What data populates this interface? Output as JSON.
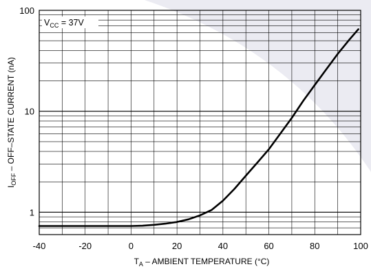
{
  "chart_data": {
    "type": "line",
    "xlabel": {
      "prefix": "T",
      "sub": "A",
      "rest": " – AMBIENT TEMPERATURE (°C)"
    },
    "ylabel": {
      "prefix": "I",
      "sub": "OFF",
      "rest": " – OFF–STATE CURRENT (nA)"
    },
    "annotation": {
      "prefix": "V",
      "sub": "CC",
      "rest": " = 37V"
    },
    "x_scale": "linear",
    "y_scale": "log",
    "xlim": [
      -40,
      100
    ],
    "ylim": [
      0.6,
      100
    ],
    "x_ticks": [
      -40,
      -20,
      0,
      20,
      40,
      60,
      80,
      100
    ],
    "x_tick_labels": [
      "-40",
      "-20",
      "0",
      "20",
      "40",
      "60",
      "80",
      "100"
    ],
    "y_ticks": [
      1,
      10,
      100
    ],
    "y_tick_labels": [
      "1",
      "10",
      "100"
    ],
    "grid": true,
    "line_color": "#000000",
    "background_shape_color": "#ebebf2",
    "series": [
      {
        "x": [
          -40,
          -20,
          0,
          5,
          10,
          15,
          20,
          25,
          30,
          35,
          40,
          45,
          50,
          55,
          60,
          65,
          70,
          75,
          80,
          85,
          90,
          95,
          99
        ],
        "y": [
          0.73,
          0.73,
          0.73,
          0.735,
          0.75,
          0.77,
          0.8,
          0.85,
          0.93,
          1.05,
          1.3,
          1.7,
          2.3,
          3.1,
          4.2,
          6.0,
          8.6,
          12.7,
          18.2,
          26.0,
          37.0,
          51.0,
          65.0
        ]
      }
    ]
  }
}
